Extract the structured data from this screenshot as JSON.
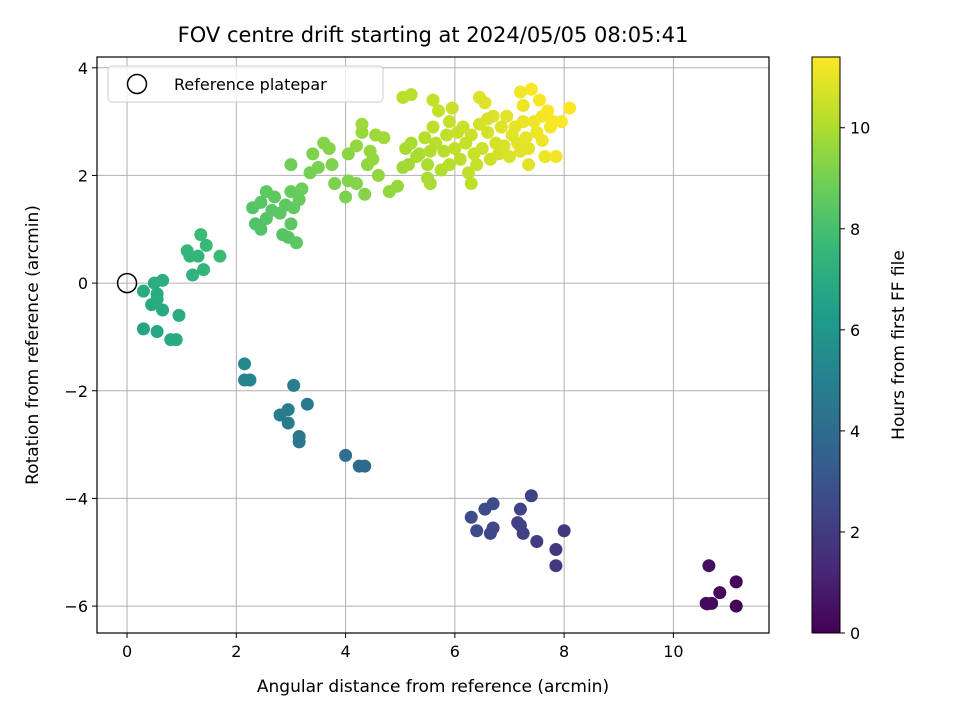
{
  "chart_data": {
    "type": "scatter",
    "title": "FOV centre drift starting at 2024/05/05 08:05:41",
    "xlabel": "Angular distance from reference (arcmin)",
    "ylabel": "Rotation from reference (arcmin)",
    "xlim": [
      -0.55,
      11.75
    ],
    "ylim": [
      -6.5,
      4.2
    ],
    "xticks": [
      "0",
      "2",
      "4",
      "6",
      "8",
      "10"
    ],
    "yticks": [
      "−6",
      "−4",
      "−2",
      "0",
      "2",
      "4"
    ],
    "grid": true,
    "legend": {
      "placement": "top-left",
      "entries": [
        "Reference platepar"
      ]
    },
    "reference_point": {
      "x": 0,
      "y": 0
    },
    "colorbar": {
      "label": "Hours from first FF file",
      "range": [
        0,
        11.4
      ],
      "ticks": [
        "0",
        "2",
        "4",
        "6",
        "8",
        "10"
      ],
      "colormap": [
        "#440154",
        "#482878",
        "#3e4989",
        "#31688e",
        "#26828e",
        "#1f9e89",
        "#35b779",
        "#6ece58",
        "#b5de2b",
        "#fde725"
      ]
    },
    "series": [
      {
        "points": [
          [
            10.6,
            -5.95
          ],
          [
            10.65,
            -5.25
          ],
          [
            10.7,
            -5.95
          ],
          [
            10.85,
            -5.75
          ],
          [
            11.15,
            -5.55
          ],
          [
            11.15,
            -6.0
          ],
          [
            10.62,
            -5.96
          ],
          [
            6.3,
            -4.35
          ],
          [
            6.4,
            -4.6
          ],
          [
            6.55,
            -4.2
          ],
          [
            6.65,
            -4.65
          ],
          [
            6.7,
            -4.1
          ],
          [
            6.7,
            -4.55
          ],
          [
            7.15,
            -4.45
          ],
          [
            7.2,
            -4.2
          ],
          [
            7.2,
            -4.5
          ],
          [
            7.25,
            -4.65
          ],
          [
            7.4,
            -3.95
          ],
          [
            7.5,
            -4.8
          ],
          [
            7.85,
            -4.95
          ],
          [
            7.85,
            -5.25
          ],
          [
            8.0,
            -4.6
          ],
          [
            2.15,
            -1.5
          ],
          [
            2.15,
            -1.8
          ],
          [
            2.25,
            -1.8
          ],
          [
            2.8,
            -2.45
          ],
          [
            2.95,
            -2.35
          ],
          [
            2.95,
            -2.6
          ],
          [
            3.05,
            -1.9
          ],
          [
            3.15,
            -2.85
          ],
          [
            3.15,
            -2.95
          ],
          [
            3.3,
            -2.25
          ],
          [
            4.0,
            -3.2
          ],
          [
            4.25,
            -3.4
          ],
          [
            4.35,
            -3.4
          ],
          [
            0.3,
            -0.15
          ],
          [
            0.3,
            -0.85
          ],
          [
            0.45,
            -0.4
          ],
          [
            0.5,
            0.0
          ],
          [
            0.55,
            -0.9
          ],
          [
            0.55,
            -0.3
          ],
          [
            0.55,
            -0.2
          ],
          [
            0.65,
            0.05
          ],
          [
            0.65,
            -0.5
          ],
          [
            0.8,
            -1.05
          ],
          [
            0.9,
            -1.05
          ],
          [
            0.95,
            -0.6
          ],
          [
            1.1,
            0.6
          ],
          [
            1.15,
            0.5
          ],
          [
            1.2,
            0.15
          ],
          [
            1.3,
            0.5
          ],
          [
            1.35,
            0.9
          ],
          [
            1.4,
            0.25
          ],
          [
            1.45,
            0.7
          ],
          [
            1.7,
            0.5
          ],
          [
            2.3,
            1.4
          ],
          [
            2.35,
            1.1
          ],
          [
            2.45,
            1.0
          ],
          [
            2.45,
            1.5
          ],
          [
            2.55,
            1.2
          ],
          [
            2.55,
            1.7
          ],
          [
            2.65,
            1.35
          ],
          [
            2.7,
            1.6
          ],
          [
            2.8,
            1.3
          ],
          [
            2.85,
            0.9
          ],
          [
            2.9,
            1.45
          ],
          [
            2.95,
            0.85
          ],
          [
            3.0,
            1.1
          ],
          [
            3.0,
            1.7
          ],
          [
            3.05,
            1.4
          ],
          [
            3.1,
            0.75
          ],
          [
            3.15,
            1.55
          ],
          [
            3.2,
            1.75
          ],
          [
            3.0,
            2.2
          ],
          [
            3.35,
            2.05
          ],
          [
            3.4,
            2.4
          ],
          [
            3.5,
            2.15
          ],
          [
            3.6,
            2.6
          ],
          [
            3.7,
            2.5
          ],
          [
            3.75,
            2.2
          ],
          [
            3.8,
            1.85
          ],
          [
            4.0,
            1.6
          ],
          [
            4.05,
            1.9
          ],
          [
            4.05,
            2.4
          ],
          [
            4.2,
            1.85
          ],
          [
            4.2,
            2.55
          ],
          [
            4.3,
            2.8
          ],
          [
            4.35,
            1.65
          ],
          [
            4.4,
            2.2
          ],
          [
            4.45,
            2.45
          ],
          [
            4.55,
            2.75
          ],
          [
            4.6,
            2.0
          ],
          [
            4.7,
            2.7
          ],
          [
            4.8,
            1.7
          ],
          [
            4.95,
            1.8
          ],
          [
            4.3,
            2.95
          ],
          [
            4.5,
            2.3
          ],
          [
            5.05,
            2.15
          ],
          [
            5.1,
            2.5
          ],
          [
            5.15,
            2.2
          ],
          [
            5.2,
            2.6
          ],
          [
            5.3,
            2.35
          ],
          [
            5.35,
            2.4
          ],
          [
            5.45,
            2.7
          ],
          [
            5.5,
            2.2
          ],
          [
            5.55,
            2.45
          ],
          [
            5.6,
            2.9
          ],
          [
            5.65,
            2.6
          ],
          [
            5.75,
            2.1
          ],
          [
            5.8,
            2.45
          ],
          [
            5.85,
            2.75
          ],
          [
            5.9,
            2.2
          ],
          [
            5.9,
            3.0
          ],
          [
            6.0,
            2.5
          ],
          [
            6.05,
            2.8
          ],
          [
            6.1,
            2.3
          ],
          [
            6.15,
            2.9
          ],
          [
            6.2,
            2.6
          ],
          [
            6.25,
            2.05
          ],
          [
            6.3,
            2.75
          ],
          [
            6.35,
            2.4
          ],
          [
            5.5,
            1.95
          ],
          [
            5.55,
            1.85
          ],
          [
            5.05,
            3.45
          ],
          [
            5.2,
            3.5
          ],
          [
            5.6,
            3.4
          ],
          [
            5.7,
            3.2
          ],
          [
            5.95,
            3.25
          ],
          [
            6.4,
            2.2
          ],
          [
            6.45,
            2.95
          ],
          [
            6.5,
            2.5
          ],
          [
            6.55,
            3.35
          ],
          [
            6.6,
            2.8
          ],
          [
            6.65,
            2.3
          ],
          [
            6.7,
            3.1
          ],
          [
            6.75,
            2.6
          ],
          [
            6.8,
            2.4
          ],
          [
            6.85,
            2.9
          ],
          [
            6.9,
            2.55
          ],
          [
            6.95,
            3.1
          ],
          [
            7.0,
            2.35
          ],
          [
            7.05,
            2.75
          ],
          [
            7.1,
            2.9
          ],
          [
            7.15,
            2.6
          ],
          [
            7.2,
            2.45
          ],
          [
            7.25,
            3.0
          ],
          [
            7.3,
            2.7
          ],
          [
            7.35,
            2.5
          ],
          [
            6.3,
            1.85
          ],
          [
            6.45,
            3.45
          ],
          [
            6.6,
            3.05
          ],
          [
            7.2,
            3.55
          ],
          [
            7.25,
            3.3
          ],
          [
            7.4,
            3.6
          ],
          [
            7.45,
            3.0
          ],
          [
            7.5,
            2.8
          ],
          [
            7.55,
            3.4
          ],
          [
            7.6,
            2.65
          ],
          [
            7.65,
            2.35
          ],
          [
            7.7,
            3.2
          ],
          [
            7.75,
            2.9
          ],
          [
            7.8,
            3.0
          ],
          [
            7.85,
            2.35
          ],
          [
            7.95,
            3.0
          ],
          [
            8.1,
            3.25
          ],
          [
            7.35,
            2.2
          ],
          [
            7.6,
            3.1
          ]
        ]
      }
    ]
  }
}
